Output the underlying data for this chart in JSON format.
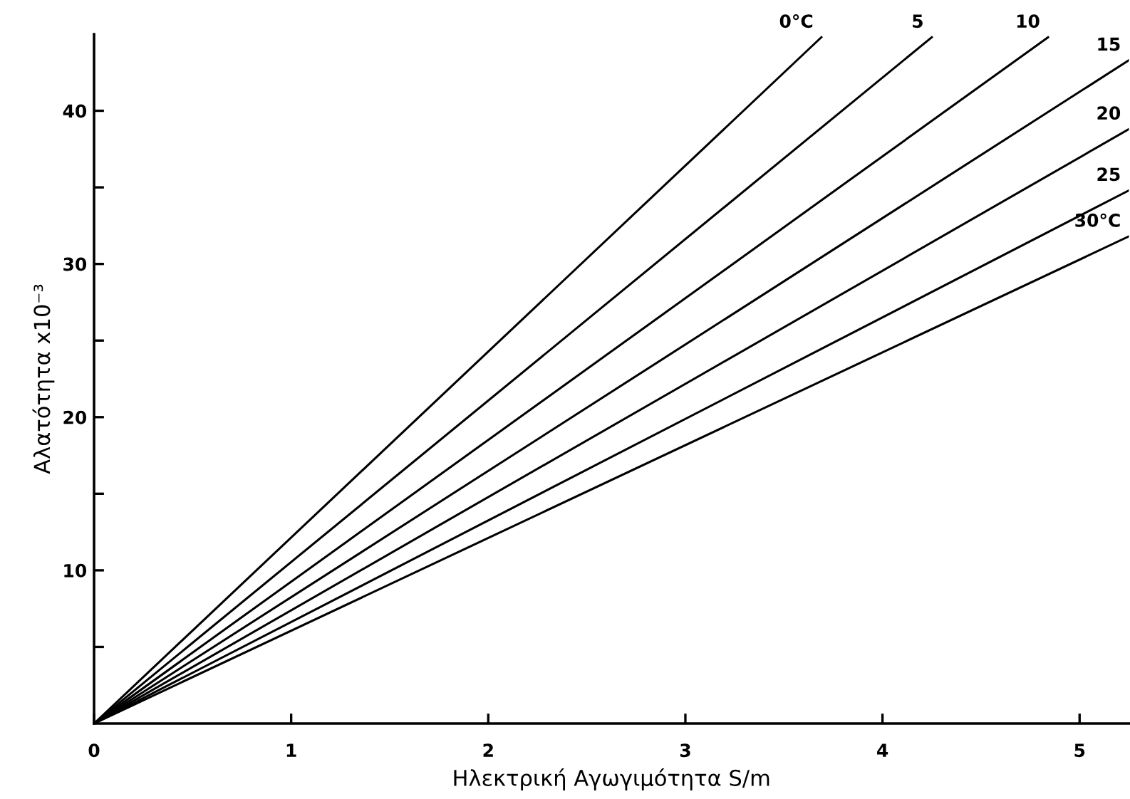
{
  "chart_data": {
    "type": "line",
    "xlabel": "Ηλεκτρική Αγωγιμότητα S/m",
    "ylabel": "Αλατότητα x10⁻³",
    "xlim": [
      0,
      5.25
    ],
    "ylim": [
      0,
      45
    ],
    "xticks": [
      0,
      1,
      2,
      3,
      4,
      5
    ],
    "yticks": [
      {
        "value": 5,
        "label": null
      },
      10,
      {
        "value": 15,
        "label": null
      },
      20,
      {
        "value": 25,
        "label": null
      },
      30,
      {
        "value": 35,
        "label": null
      },
      40
    ],
    "grid": false,
    "legend": false,
    "marker": "none",
    "line_style": "solid",
    "series": [
      {
        "name": "0°C",
        "color": "#000000",
        "x": [
          0,
          3.69
        ],
        "values": [
          0,
          44.8
        ]
      },
      {
        "name": "5",
        "color": "#000000",
        "x": [
          0,
          4.25
        ],
        "values": [
          0,
          44.8
        ]
      },
      {
        "name": "10",
        "color": "#000000",
        "x": [
          0,
          4.84
        ],
        "values": [
          0,
          44.8
        ]
      },
      {
        "name": "15",
        "color": "#000000",
        "x": [
          0,
          5.25
        ],
        "values": [
          0,
          43.3
        ]
      },
      {
        "name": "20",
        "color": "#000000",
        "x": [
          0,
          5.25
        ],
        "values": [
          0,
          38.8
        ]
      },
      {
        "name": "25",
        "color": "#000000",
        "x": [
          0,
          5.25
        ],
        "values": [
          0,
          34.8
        ]
      },
      {
        "name": "30°C",
        "color": "#000000",
        "x": [
          0,
          5.25
        ],
        "values": [
          0,
          31.8
        ]
      }
    ]
  }
}
